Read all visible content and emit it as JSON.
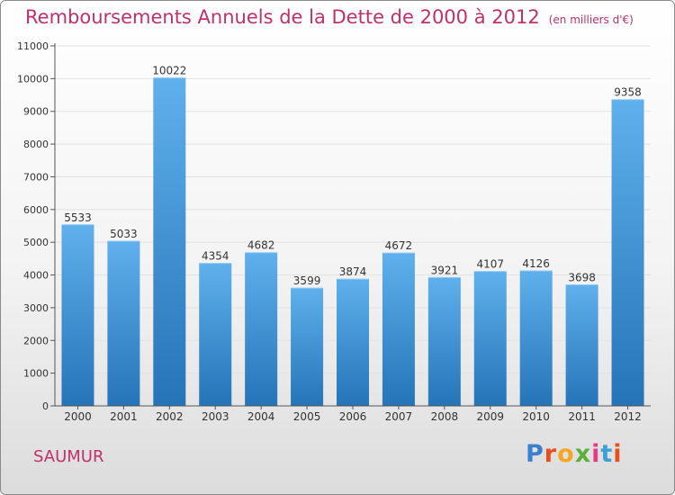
{
  "title": "Remboursements Annuels de la Dette de 2000 à 2012",
  "unit_note": "(en milliers d'€)",
  "city": "SAUMUR",
  "logo": {
    "text": "Proxiti",
    "colors": [
      "#3a7fd0",
      "#e94e1b",
      "#f5a623",
      "#5bb03a",
      "#e23b8a",
      "#3aa0d8",
      "#e94e1b"
    ]
  },
  "colors": {
    "bar_light": "#5fb0ec",
    "bar_dark": "#2574b8",
    "title": "#c0306a",
    "axis": "#555555"
  },
  "chart_data": {
    "type": "bar",
    "title": "Remboursements Annuels de la Dette de 2000 à 2012",
    "xlabel": "",
    "ylabel": "",
    "categories": [
      "2000",
      "2001",
      "2002",
      "2003",
      "2004",
      "2005",
      "2006",
      "2007",
      "2008",
      "2009",
      "2010",
      "2011",
      "2012"
    ],
    "values": [
      5533,
      5033,
      10022,
      4354,
      4682,
      3599,
      3874,
      4672,
      3921,
      4107,
      4126,
      3698,
      9358
    ],
    "ylim": [
      0,
      11000
    ],
    "yticks": [
      0,
      1000,
      2000,
      3000,
      4000,
      5000,
      6000,
      7000,
      8000,
      9000,
      10000,
      11000
    ],
    "grid": true
  }
}
